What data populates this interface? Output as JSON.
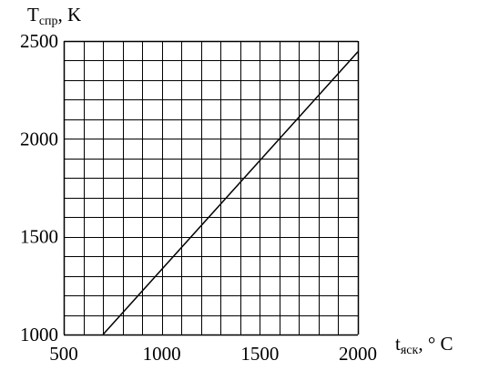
{
  "chart_data": {
    "type": "line",
    "ylabel": {
      "main": "T",
      "sub": "спр",
      "unit": ", K"
    },
    "xlabel": {
      "main": "t",
      "sub": "яск",
      "unit": ", ° C"
    },
    "xlim": [
      500,
      2000
    ],
    "ylim": [
      1000,
      2500
    ],
    "x_ticks": [
      500,
      1000,
      1500,
      2000
    ],
    "y_ticks": [
      1000,
      1500,
      2000,
      2500
    ],
    "grid": true,
    "grid_x_step": 100,
    "grid_y_step": 100,
    "series": [
      {
        "x": [
          700,
          2000
        ],
        "y": [
          1000,
          2445
        ]
      }
    ],
    "colors": {
      "line": "#000000",
      "grid": "#000000"
    }
  }
}
